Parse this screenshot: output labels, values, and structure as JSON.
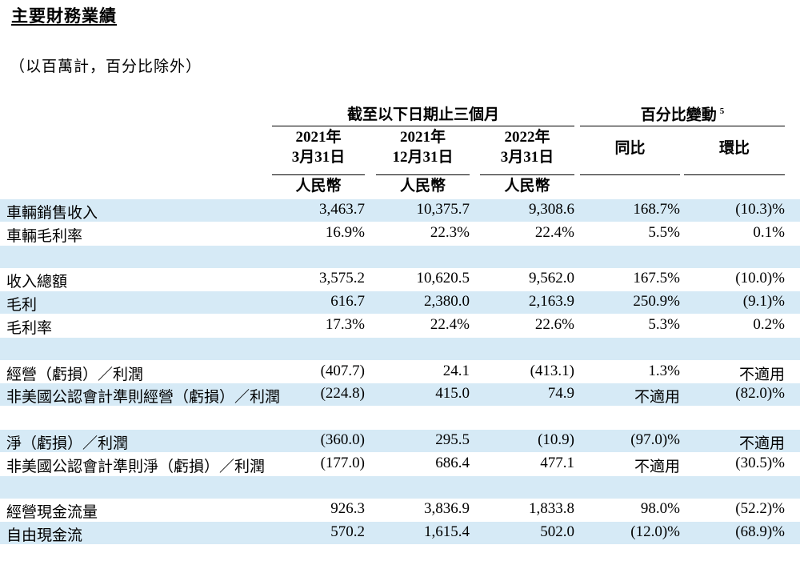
{
  "title": "主要財務業績",
  "subtitle": "（以百萬計，百分比除外）",
  "header": {
    "period_group": "截至以下日期止三個月",
    "change_group": "百分比變動",
    "change_footnote": "5",
    "columns": [
      {
        "year": "2021年",
        "date": "3月31日",
        "currency": "人民幣"
      },
      {
        "year": "2021年",
        "date": "12月31日",
        "currency": "人民幣"
      },
      {
        "year": "2022年",
        "date": "3月31日",
        "currency": "人民幣"
      }
    ],
    "yoy": "同比",
    "qoq": "環比"
  },
  "rows": [
    {
      "label": "車輛銷售收入",
      "values": [
        "3,463.7",
        "10,375.7",
        "9,308.6",
        "168.7%",
        "(10.3)%"
      ]
    },
    {
      "label": "車輛毛利率",
      "values": [
        "16.9%",
        "22.3%",
        "22.4%",
        "5.5%",
        "0.1%"
      ]
    },
    {
      "label": "",
      "values": [
        "",
        "",
        "",
        "",
        ""
      ]
    },
    {
      "label": "收入總額",
      "values": [
        "3,575.2",
        "10,620.5",
        "9,562.0",
        "167.5%",
        "(10.0)%"
      ]
    },
    {
      "label": "毛利",
      "values": [
        "616.7",
        "2,380.0",
        "2,163.9",
        "250.9%",
        "(9.1)%"
      ]
    },
    {
      "label": "毛利率",
      "values": [
        "17.3%",
        "22.4%",
        "22.6%",
        "5.3%",
        "0.2%"
      ]
    },
    {
      "label": "",
      "values": [
        "",
        "",
        "",
        "",
        ""
      ]
    },
    {
      "label": "經營（虧損）／利潤",
      "values": [
        "(407.7)",
        "24.1",
        "(413.1)",
        "1.3%",
        "不適用"
      ]
    },
    {
      "label": "非美國公認會計準則經營（虧損）／利潤",
      "values": [
        "(224.8)",
        "415.0",
        "74.9",
        "不適用",
        "(82.0)%"
      ]
    },
    {
      "label": "",
      "values": [
        "",
        "",
        "",
        "",
        ""
      ]
    },
    {
      "label": "淨（虧損）／利潤",
      "values": [
        "(360.0)",
        "295.5",
        "(10.9)",
        "(97.0)%",
        "不適用"
      ]
    },
    {
      "label": "非美國公認會計準則淨（虧損）／利潤",
      "values": [
        "(177.0)",
        "686.4",
        "477.1",
        "不適用",
        "(30.5)%"
      ]
    },
    {
      "label": "",
      "values": [
        "",
        "",
        "",
        "",
        ""
      ]
    },
    {
      "label": "經營現金流量",
      "values": [
        "926.3",
        "3,836.9",
        "1,833.8",
        "98.0%",
        "(52.2)%"
      ]
    },
    {
      "label": "自由現金流",
      "values": [
        "570.2",
        "1,615.4",
        "502.0",
        "(12.0)%",
        "(68.9)%"
      ]
    }
  ]
}
